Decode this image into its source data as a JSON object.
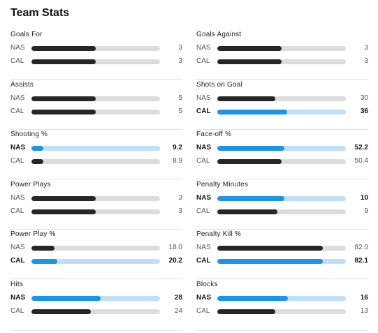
{
  "title": "Team Stats",
  "stats": [
    {
      "label": "Goals For",
      "col": "left",
      "row": 0,
      "rows": [
        {
          "team": "NAS",
          "value": "3",
          "pct": 0.5,
          "lead": false
        },
        {
          "team": "CAL",
          "value": "3",
          "pct": 0.5,
          "lead": false
        }
      ]
    },
    {
      "label": "Goals Against",
      "col": "right",
      "row": 0,
      "rows": [
        {
          "team": "NAS",
          "value": "3",
          "pct": 0.5,
          "lead": false
        },
        {
          "team": "CAL",
          "value": "3",
          "pct": 0.5,
          "lead": false
        }
      ]
    },
    {
      "label": "Assists",
      "col": "left",
      "row": 1,
      "rows": [
        {
          "team": "NAS",
          "value": "5",
          "pct": 0.5,
          "lead": false
        },
        {
          "team": "CAL",
          "value": "5",
          "pct": 0.5,
          "lead": false
        }
      ]
    },
    {
      "label": "Shots on Goal",
      "col": "right",
      "row": 1,
      "rows": [
        {
          "team": "NAS",
          "value": "30",
          "pct": 0.45,
          "lead": false
        },
        {
          "team": "CAL",
          "value": "36",
          "pct": 0.545,
          "lead": true
        }
      ]
    },
    {
      "label": "Shooting %",
      "col": "left",
      "row": 2,
      "rows": [
        {
          "team": "NAS",
          "value": "9.2",
          "pct": 0.09,
          "lead": true
        },
        {
          "team": "CAL",
          "value": "8.9",
          "pct": 0.09,
          "lead": false
        }
      ]
    },
    {
      "label": "Face-off %",
      "col": "right",
      "row": 2,
      "rows": [
        {
          "team": "NAS",
          "value": "52.2",
          "pct": 0.52,
          "lead": true
        },
        {
          "team": "CAL",
          "value": "50.4",
          "pct": 0.5,
          "lead": false
        }
      ]
    },
    {
      "label": "Power Plays",
      "col": "left",
      "row": 3,
      "rows": [
        {
          "team": "NAS",
          "value": "3",
          "pct": 0.5,
          "lead": false
        },
        {
          "team": "CAL",
          "value": "3",
          "pct": 0.5,
          "lead": false
        }
      ]
    },
    {
      "label": "Penalty Minutes",
      "col": "right",
      "row": 3,
      "rows": [
        {
          "team": "NAS",
          "value": "10",
          "pct": 0.52,
          "lead": true
        },
        {
          "team": "CAL",
          "value": "9",
          "pct": 0.47,
          "lead": false
        }
      ]
    },
    {
      "label": "Power Play %",
      "col": "left",
      "row": 4,
      "rows": [
        {
          "team": "NAS",
          "value": "18.0",
          "pct": 0.18,
          "lead": false
        },
        {
          "team": "CAL",
          "value": "20.2",
          "pct": 0.2,
          "lead": true
        }
      ]
    },
    {
      "label": "Penalty Kill %",
      "col": "right",
      "row": 4,
      "rows": [
        {
          "team": "NAS",
          "value": "82.0",
          "pct": 0.82,
          "lead": false
        },
        {
          "team": "CAL",
          "value": "82.1",
          "pct": 0.82,
          "lead": true
        }
      ]
    },
    {
      "label": "Hits",
      "col": "left",
      "row": 5,
      "rows": [
        {
          "team": "NAS",
          "value": "28",
          "pct": 0.54,
          "lead": true
        },
        {
          "team": "CAL",
          "value": "24",
          "pct": 0.46,
          "lead": false
        }
      ]
    },
    {
      "label": "Blocks",
      "col": "right",
      "row": 5,
      "rows": [
        {
          "team": "NAS",
          "value": "16",
          "pct": 0.55,
          "lead": true
        },
        {
          "team": "CAL",
          "value": "13",
          "pct": 0.45,
          "lead": false
        }
      ]
    }
  ],
  "colors": {
    "lead_fill": "#1a95ee",
    "lead_track": "#bfe0fa",
    "fill": "#262626",
    "track": "#dcdcdc"
  }
}
